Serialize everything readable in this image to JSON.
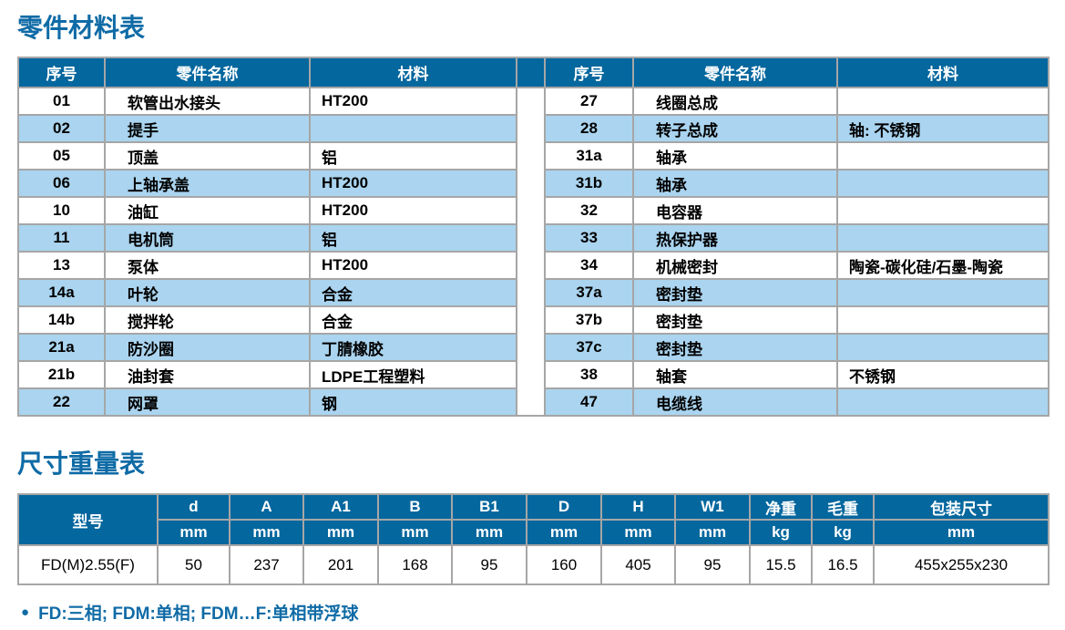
{
  "page": {
    "parts_title": "零件材料表",
    "dims_title": "尺寸重量表",
    "footnote_text": "FD:三相; FDM:单相; FDM…F:单相带浮球"
  },
  "icons": {
    "bullet": "●"
  },
  "colors": {
    "header_blue": "#04679e",
    "row_light_blue": "#aad4ef",
    "title_blue": "#0f6ba6",
    "border_gray": "#a6a6a6"
  },
  "parts_table": {
    "headers": [
      "序号",
      "零件名称",
      "材料"
    ],
    "left_rows": [
      {
        "no": "01",
        "name": "软管出水接头",
        "material": "HT200"
      },
      {
        "no": "02",
        "name": "提手",
        "material": ""
      },
      {
        "no": "05",
        "name": "顶盖",
        "material": "铝"
      },
      {
        "no": "06",
        "name": "上轴承盖",
        "material": "HT200"
      },
      {
        "no": "10",
        "name": "油缸",
        "material": "HT200"
      },
      {
        "no": "11",
        "name": "电机筒",
        "material": "铝"
      },
      {
        "no": "13",
        "name": "泵体",
        "material": "HT200"
      },
      {
        "no": "14a",
        "name": "叶轮",
        "material": "合金"
      },
      {
        "no": "14b",
        "name": "搅拌轮",
        "material": "合金"
      },
      {
        "no": "21a",
        "name": "防沙圈",
        "material": "丁腈橡胶"
      },
      {
        "no": "21b",
        "name": "油封套",
        "material": "LDPE工程塑料"
      },
      {
        "no": "22",
        "name": "网罩",
        "material": "钢"
      }
    ],
    "right_rows": [
      {
        "no": "27",
        "name": "线圈总成",
        "material": ""
      },
      {
        "no": "28",
        "name": "转子总成",
        "material": "轴: 不锈钢"
      },
      {
        "no": "31a",
        "name": "轴承",
        "material": ""
      },
      {
        "no": "31b",
        "name": "轴承",
        "material": ""
      },
      {
        "no": "32",
        "name": "电容器",
        "material": ""
      },
      {
        "no": "33",
        "name": "热保护器",
        "material": ""
      },
      {
        "no": "34",
        "name": "机械密封",
        "material": "陶瓷-碳化硅/石墨-陶瓷"
      },
      {
        "no": "37a",
        "name": "密封垫",
        "material": ""
      },
      {
        "no": "37b",
        "name": "密封垫",
        "material": ""
      },
      {
        "no": "37c",
        "name": "密封垫",
        "material": ""
      },
      {
        "no": "38",
        "name": "轴套",
        "material": "不锈钢"
      },
      {
        "no": "47",
        "name": "电缆线",
        "material": ""
      }
    ]
  },
  "dims_table": {
    "model_header": "型号",
    "columns": [
      {
        "label": "d",
        "unit": "mm"
      },
      {
        "label": "A",
        "unit": "mm"
      },
      {
        "label": "A1",
        "unit": "mm"
      },
      {
        "label": "B",
        "unit": "mm"
      },
      {
        "label": "B1",
        "unit": "mm"
      },
      {
        "label": "D",
        "unit": "mm"
      },
      {
        "label": "H",
        "unit": "mm"
      },
      {
        "label": "W1",
        "unit": "mm"
      },
      {
        "label": "净重",
        "unit": "kg"
      },
      {
        "label": "毛重",
        "unit": "kg"
      },
      {
        "label": "包装尺寸",
        "unit": "mm"
      }
    ],
    "rows": [
      {
        "model": "FD(M)2.55(F)",
        "values": [
          "50",
          "237",
          "201",
          "168",
          "95",
          "160",
          "405",
          "95",
          "15.5",
          "16.5",
          "455x255x230"
        ]
      }
    ]
  }
}
